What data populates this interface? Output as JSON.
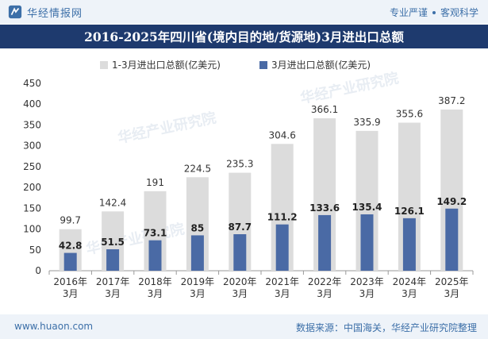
{
  "header": {
    "brand_name": "华经情报网",
    "tagline_left": "专业严谨",
    "tagline_right": "客观科学"
  },
  "chart_data": {
    "type": "bar",
    "title": "2016-2025年四川省(境内目的地/货源地)3月进出口总额",
    "categories": [
      "2016年3月",
      "2017年3月",
      "2018年3月",
      "2019年3月",
      "2020年3月",
      "2021年3月",
      "2022年3月",
      "2023年3月",
      "2024年3月",
      "2025年3月"
    ],
    "category_lines": [
      [
        "2016年",
        "3月"
      ],
      [
        "2017年",
        "3月"
      ],
      [
        "2018年",
        "3月"
      ],
      [
        "2019年",
        "3月"
      ],
      [
        "2020年",
        "3月"
      ],
      [
        "2021年",
        "3月"
      ],
      [
        "2022年",
        "3月"
      ],
      [
        "2023年",
        "3月"
      ],
      [
        "2024年",
        "3月"
      ],
      [
        "2025年",
        "3月"
      ]
    ],
    "series": [
      {
        "name": "1-3月进出口总额(亿美元)",
        "values": [
          99.7,
          142.4,
          191,
          224.5,
          235.3,
          304.6,
          366.1,
          335.9,
          355.6,
          387.2
        ],
        "color": "#dcdcdc"
      },
      {
        "name": "3月进出口总额(亿美元)",
        "values": [
          42.8,
          51.5,
          73.1,
          85,
          87.7,
          111.2,
          133.6,
          135.4,
          126.1,
          149.2
        ],
        "color": "#4a6aa5"
      }
    ],
    "ylim": [
      0,
      450
    ],
    "yticks": [
      0,
      50,
      100,
      150,
      200,
      250,
      300,
      350,
      400,
      450
    ],
    "legend_position": "top",
    "grid": false
  },
  "watermark": {
    "text": "华经产业研究院",
    "url": "www.huaon.com"
  },
  "footer": {
    "url": "www.huaon.com",
    "source": "数据来源：中国海关，华经产业研究院整理"
  }
}
